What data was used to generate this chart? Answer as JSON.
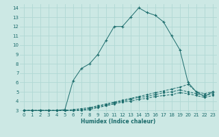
{
  "xlabel": "Humidex (Indice chaleur)",
  "xlim": [
    -0.5,
    23.5
  ],
  "ylim": [
    2.8,
    14.4
  ],
  "yticks": [
    3,
    4,
    5,
    6,
    7,
    8,
    9,
    10,
    11,
    12,
    13,
    14
  ],
  "xticks": [
    0,
    1,
    2,
    3,
    4,
    5,
    6,
    7,
    8,
    9,
    10,
    11,
    12,
    13,
    14,
    15,
    16,
    17,
    18,
    19,
    20,
    21,
    22,
    23
  ],
  "bg_color": "#cce8e4",
  "line_color": "#1a6b6b",
  "grid_color": "#b0d8d4",
  "main_x": [
    0,
    1,
    2,
    3,
    4,
    5,
    6,
    7,
    8,
    9,
    10,
    11,
    12,
    13,
    14,
    15,
    16,
    17,
    18,
    19,
    20,
    21,
    22,
    23
  ],
  "main_y": [
    3,
    3,
    3,
    3,
    3,
    3.1,
    6.2,
    7.5,
    8.0,
    9.0,
    10.5,
    12.0,
    12.0,
    13.0,
    14.0,
    13.5,
    13.2,
    12.5,
    11.0,
    9.5,
    6.0,
    5.0,
    4.5,
    5.0
  ],
  "ref1_x": [
    0,
    1,
    2,
    3,
    4,
    5,
    6,
    7,
    8,
    9,
    10,
    11,
    12,
    13,
    14,
    15,
    16,
    17,
    18,
    19,
    20,
    21,
    22,
    23
  ],
  "ref1_y": [
    3,
    3,
    3,
    3,
    3,
    3,
    3.1,
    3.2,
    3.3,
    3.5,
    3.7,
    3.9,
    4.1,
    4.3,
    4.5,
    4.7,
    4.9,
    5.1,
    5.3,
    5.5,
    5.8,
    5.0,
    4.8,
    5.0
  ],
  "ref2_x": [
    0,
    1,
    2,
    3,
    4,
    5,
    6,
    7,
    8,
    9,
    10,
    11,
    12,
    13,
    14,
    15,
    16,
    17,
    18,
    19,
    20,
    21,
    22,
    23
  ],
  "ref2_y": [
    3,
    3,
    3,
    3,
    3,
    3,
    3.0,
    3.1,
    3.2,
    3.4,
    3.6,
    3.8,
    4.0,
    4.2,
    4.4,
    4.5,
    4.7,
    4.9,
    5.0,
    5.2,
    5.0,
    4.8,
    4.6,
    4.8
  ],
  "ref3_x": [
    0,
    1,
    2,
    3,
    4,
    5,
    6,
    7,
    8,
    9,
    10,
    11,
    12,
    13,
    14,
    15,
    16,
    17,
    18,
    19,
    20,
    21,
    22,
    23
  ],
  "ref3_y": [
    3,
    3,
    3,
    3,
    3,
    3,
    3.0,
    3.0,
    3.1,
    3.3,
    3.5,
    3.7,
    3.9,
    4.0,
    4.2,
    4.3,
    4.5,
    4.6,
    4.7,
    4.9,
    4.8,
    4.6,
    4.4,
    4.6
  ]
}
